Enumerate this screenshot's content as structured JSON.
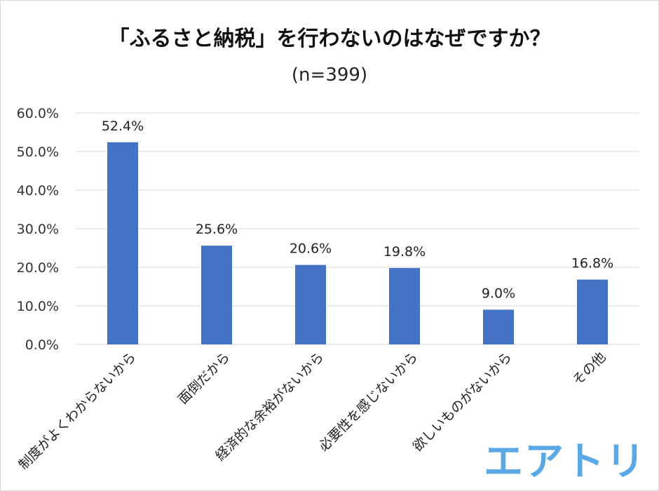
{
  "title": "「ふるさと納税」を行わないのはなぜですか？",
  "subtitle": "(n=399)",
  "logo_text": "エアトリ",
  "colors": {
    "bar": "#4472c4",
    "grid": "#d9d9d9",
    "logo": "#5aa9e6"
  },
  "chart_data": {
    "type": "bar",
    "title": "「ふるさと納税」を行わないのはなぜですか？",
    "subtitle": "(n=399)",
    "categories": [
      "制度がよくわからないから",
      "面倒だから",
      "経済的な余裕がないから",
      "必要性を感じないから",
      "欲しいものがないから",
      "その他"
    ],
    "values": [
      52.4,
      25.6,
      20.6,
      19.8,
      9.0,
      16.8
    ],
    "value_labels": [
      "52.4%",
      "25.6%",
      "20.6%",
      "19.8%",
      "9.0%",
      "16.8%"
    ],
    "yticks": [
      "0.0%",
      "10.0%",
      "20.0%",
      "30.0%",
      "40.0%",
      "50.0%",
      "60.0%"
    ],
    "ylim": [
      0,
      60
    ],
    "grid": true,
    "legend": "none"
  }
}
